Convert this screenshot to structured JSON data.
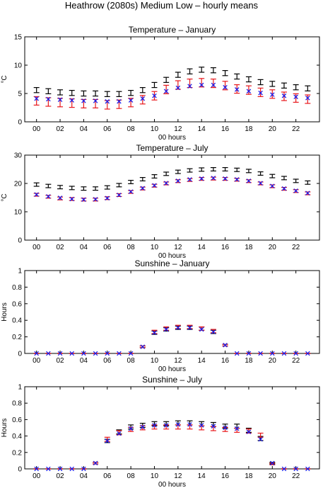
{
  "figure": {
    "title": "Heathrow (2080s) Medium Low – hourly means"
  },
  "colors": {
    "black_series": "#000000",
    "red_series": "#e8181c",
    "blue_series": "#1c1ce8"
  },
  "chart_data": [
    {
      "type": "scatter",
      "title": "Temperature – January",
      "xlabel": "00 hours",
      "ylabel": "°C",
      "xlim": [
        -1,
        24
      ],
      "ylim": [
        0,
        15
      ],
      "xticks": [
        0,
        2,
        4,
        6,
        8,
        10,
        12,
        14,
        16,
        18,
        20,
        22
      ],
      "xtick_labels": [
        "00",
        "02",
        "04",
        "06",
        "08",
        "10",
        "12",
        "14",
        "16",
        "18",
        "20",
        "22"
      ],
      "yticks": [
        0,
        5,
        10,
        15
      ],
      "ytick_labels": [
        "0",
        "5",
        "10",
        "15"
      ],
      "x": [
        0,
        1,
        2,
        3,
        4,
        5,
        6,
        7,
        8,
        9,
        10,
        11,
        12,
        13,
        14,
        15,
        16,
        17,
        18,
        19,
        20,
        21,
        22,
        23
      ],
      "series": [
        {
          "marker": "errorbar",
          "color": "black",
          "values": [
            5.6,
            5.4,
            5.2,
            5.1,
            5.0,
            5.0,
            4.9,
            4.9,
            5.1,
            5.6,
            6.5,
            7.4,
            8.3,
            8.9,
            9.2,
            9.1,
            8.6,
            8.0,
            7.5,
            7.0,
            6.7,
            6.4,
            6.1,
            5.9
          ],
          "err": [
            0.45,
            0.45,
            0.45,
            0.45,
            0.45,
            0.45,
            0.45,
            0.45,
            0.45,
            0.45,
            0.45,
            0.45,
            0.45,
            0.45,
            0.45,
            0.45,
            0.45,
            0.45,
            0.45,
            0.45,
            0.45,
            0.45,
            0.45,
            0.45
          ]
        },
        {
          "marker": "errorbar",
          "color": "red",
          "values": [
            3.7,
            3.5,
            3.4,
            3.3,
            3.2,
            3.2,
            3.0,
            3.1,
            3.4,
            3.9,
            4.6,
            5.7,
            6.5,
            6.8,
            6.9,
            6.8,
            6.4,
            5.8,
            5.6,
            5.2,
            4.9,
            4.5,
            4.2,
            4.0
          ],
          "err": [
            0.75,
            0.75,
            0.75,
            0.75,
            0.75,
            0.75,
            0.75,
            0.75,
            0.75,
            0.75,
            0.75,
            0.75,
            0.75,
            0.75,
            0.75,
            0.75,
            0.75,
            0.75,
            0.75,
            0.75,
            0.75,
            0.75,
            0.75,
            0.75
          ]
        },
        {
          "marker": "x",
          "color": "blue",
          "values": [
            4.1,
            4.0,
            3.9,
            3.8,
            3.7,
            3.7,
            3.6,
            3.6,
            3.8,
            4.1,
            4.6,
            5.4,
            6.0,
            6.3,
            6.5,
            6.5,
            6.1,
            5.7,
            5.4,
            5.1,
            4.8,
            4.6,
            4.4,
            4.2
          ]
        }
      ]
    },
    {
      "type": "scatter",
      "title": "Temperature – July",
      "xlabel": "00 hours",
      "ylabel": "°C",
      "xlim": [
        -1,
        24
      ],
      "ylim": [
        0,
        30
      ],
      "xticks": [
        0,
        2,
        4,
        6,
        8,
        10,
        12,
        14,
        16,
        18,
        20,
        22
      ],
      "xtick_labels": [
        "00",
        "02",
        "04",
        "06",
        "08",
        "10",
        "12",
        "14",
        "16",
        "18",
        "20",
        "22"
      ],
      "yticks": [
        0,
        10,
        20,
        30
      ],
      "ytick_labels": [
        "0",
        "10",
        "20",
        "30"
      ],
      "x": [
        0,
        1,
        2,
        3,
        4,
        5,
        6,
        7,
        8,
        9,
        10,
        11,
        12,
        13,
        14,
        15,
        16,
        17,
        18,
        19,
        20,
        21,
        22,
        23
      ],
      "series": [
        {
          "marker": "errorbar",
          "color": "black",
          "values": [
            19.6,
            19.1,
            18.7,
            18.4,
            18.2,
            18.2,
            18.6,
            19.4,
            20.5,
            21.5,
            22.5,
            23.4,
            24.1,
            24.6,
            24.9,
            25.0,
            25.0,
            24.8,
            24.4,
            23.5,
            22.6,
            21.9,
            20.9,
            20.3
          ],
          "err": [
            0.6,
            0.6,
            0.6,
            0.6,
            0.6,
            0.6,
            0.6,
            0.6,
            0.6,
            0.6,
            0.6,
            0.6,
            0.6,
            0.6,
            0.6,
            0.6,
            0.6,
            0.6,
            0.6,
            0.6,
            0.6,
            0.6,
            0.6,
            0.6
          ]
        },
        {
          "marker": "errorbar",
          "color": "red",
          "values": [
            16.0,
            15.3,
            14.7,
            14.5,
            14.3,
            14.3,
            14.8,
            15.9,
            17.0,
            18.2,
            19.2,
            20.0,
            20.8,
            21.2,
            21.6,
            21.7,
            21.6,
            21.3,
            20.8,
            20.0,
            19.0,
            18.1,
            17.3,
            16.5
          ],
          "err": [
            0.5,
            0.5,
            0.5,
            0.5,
            0.5,
            0.5,
            0.5,
            0.5,
            0.5,
            0.5,
            0.5,
            0.5,
            0.5,
            0.5,
            0.5,
            0.5,
            0.5,
            0.5,
            0.5,
            0.5,
            0.5,
            0.5,
            0.5,
            0.5
          ]
        },
        {
          "marker": "x",
          "color": "blue",
          "values": [
            16.1,
            15.4,
            14.9,
            14.5,
            14.3,
            14.4,
            14.8,
            15.9,
            17.1,
            18.3,
            19.3,
            20.1,
            20.9,
            21.4,
            21.7,
            21.9,
            21.7,
            21.4,
            20.9,
            20.1,
            19.1,
            18.2,
            17.4,
            16.6
          ]
        }
      ]
    },
    {
      "type": "scatter",
      "title": "Sunshine – January",
      "xlabel": "00 hours",
      "ylabel": "Hours",
      "xlim": [
        -1,
        24
      ],
      "ylim": [
        0,
        1
      ],
      "xticks": [
        0,
        2,
        4,
        6,
        8,
        10,
        12,
        14,
        16,
        18,
        20,
        22
      ],
      "xtick_labels": [
        "00",
        "02",
        "04",
        "06",
        "08",
        "10",
        "12",
        "14",
        "16",
        "18",
        "20",
        "22"
      ],
      "yticks": [
        0,
        0.2,
        0.4,
        0.6,
        0.8,
        1
      ],
      "ytick_labels": [
        "0",
        "0.2",
        "0.4",
        "0.6",
        "0.8",
        "1"
      ],
      "x": [
        0,
        1,
        2,
        3,
        4,
        5,
        6,
        7,
        8,
        9,
        10,
        11,
        12,
        13,
        14,
        15,
        16,
        17,
        18,
        19,
        20,
        21,
        22,
        23
      ],
      "series": [
        {
          "marker": "errorbar",
          "color": "black",
          "values": [
            0,
            0,
            0,
            0,
            0,
            0,
            0,
            0,
            0,
            0.08,
            0.25,
            0.29,
            0.31,
            0.31,
            0.3,
            0.26,
            0.1,
            0,
            0,
            0,
            0,
            0,
            0,
            0
          ],
          "err": [
            0,
            0,
            0,
            0,
            0,
            0,
            0,
            0,
            0,
            0.01,
            0.02,
            0.02,
            0.02,
            0.02,
            0.02,
            0.02,
            0.01,
            0,
            0,
            0,
            0,
            0,
            0,
            0
          ]
        },
        {
          "marker": "errorbar",
          "color": "red",
          "values": [
            0,
            0,
            0,
            0,
            0,
            0,
            0,
            0,
            0,
            0.08,
            0.26,
            0.3,
            0.32,
            0.32,
            0.3,
            0.27,
            0.1,
            0,
            0,
            0,
            0,
            0,
            0,
            0
          ],
          "err": [
            0,
            0,
            0,
            0,
            0,
            0,
            0,
            0,
            0,
            0.01,
            0.02,
            0.02,
            0.02,
            0.02,
            0.02,
            0.02,
            0.01,
            0,
            0,
            0,
            0,
            0,
            0,
            0
          ]
        },
        {
          "marker": "x",
          "color": "blue",
          "values": [
            0,
            0,
            0,
            0,
            0,
            0,
            0,
            0,
            0,
            0.08,
            0.25,
            0.29,
            0.31,
            0.31,
            0.29,
            0.26,
            0.1,
            0,
            0,
            0,
            0,
            0,
            0,
            0
          ]
        }
      ]
    },
    {
      "type": "scatter",
      "title": "Sunshine – July",
      "xlabel": "00 hours",
      "ylabel": "Hours",
      "xlim": [
        -1,
        24
      ],
      "ylim": [
        0,
        1
      ],
      "xticks": [
        0,
        2,
        4,
        6,
        8,
        10,
        12,
        14,
        16,
        18,
        20,
        22
      ],
      "xtick_labels": [
        "00",
        "02",
        "04",
        "06",
        "08",
        "10",
        "12",
        "14",
        "16",
        "18",
        "20",
        "22"
      ],
      "yticks": [
        0,
        0.2,
        0.4,
        0.6,
        0.8,
        1
      ],
      "ytick_labels": [
        "0",
        "0.2",
        "0.4",
        "0.6",
        "0.8",
        "1"
      ],
      "x": [
        0,
        1,
        2,
        3,
        4,
        5,
        6,
        7,
        8,
        9,
        10,
        11,
        12,
        13,
        14,
        15,
        16,
        17,
        18,
        19,
        20,
        21,
        22,
        23
      ],
      "series": [
        {
          "marker": "errorbar",
          "color": "black",
          "values": [
            0,
            0,
            0,
            0,
            0,
            0.07,
            0.34,
            0.45,
            0.51,
            0.53,
            0.55,
            0.55,
            0.56,
            0.56,
            0.55,
            0.54,
            0.52,
            0.52,
            0.47,
            0.37,
            0.07,
            0,
            0,
            0
          ],
          "err": [
            0,
            0,
            0,
            0,
            0,
            0.01,
            0.02,
            0.025,
            0.025,
            0.025,
            0.025,
            0.025,
            0.025,
            0.025,
            0.025,
            0.025,
            0.025,
            0.025,
            0.025,
            0.025,
            0.01,
            0,
            0,
            0
          ]
        },
        {
          "marker": "errorbar",
          "color": "red",
          "values": [
            0,
            0,
            0,
            0,
            0,
            0.07,
            0.36,
            0.44,
            0.48,
            0.5,
            0.51,
            0.51,
            0.51,
            0.51,
            0.5,
            0.49,
            0.48,
            0.47,
            0.46,
            0.41,
            0.06,
            0,
            0,
            0
          ],
          "err": [
            0,
            0,
            0,
            0,
            0,
            0.01,
            0.025,
            0.025,
            0.025,
            0.025,
            0.025,
            0.025,
            0.025,
            0.025,
            0.025,
            0.025,
            0.025,
            0.025,
            0.025,
            0.025,
            0.01,
            0,
            0,
            0
          ]
        },
        {
          "marker": "x",
          "color": "blue",
          "values": [
            0,
            0,
            0,
            0,
            0,
            0.07,
            0.34,
            0.43,
            0.49,
            0.51,
            0.53,
            0.53,
            0.54,
            0.54,
            0.53,
            0.52,
            0.5,
            0.49,
            0.45,
            0.36,
            0.07,
            0,
            0,
            0
          ]
        }
      ]
    }
  ]
}
